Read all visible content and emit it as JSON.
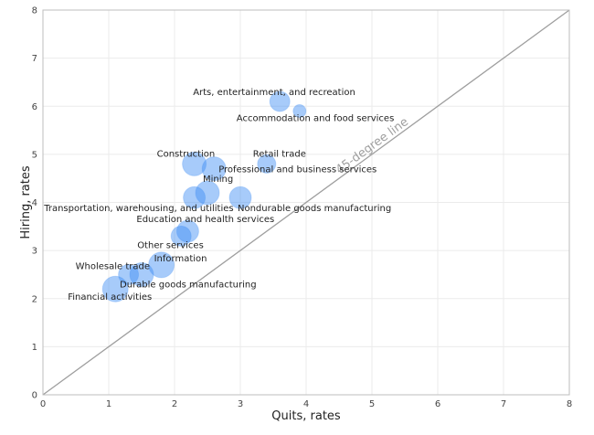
{
  "chart_data": {
    "type": "scatter",
    "title": "",
    "xlabel": "Quits, rates",
    "ylabel": "Hiring, rates",
    "xlim": [
      0,
      8
    ],
    "ylim": [
      0,
      8
    ],
    "x_ticks": [
      0,
      1,
      2,
      3,
      4,
      5,
      6,
      7,
      8
    ],
    "y_ticks": [
      0,
      1,
      2,
      3,
      4,
      5,
      6,
      7,
      8
    ],
    "grid": true,
    "bubble_color": "#3b8cf5",
    "reference_line": {
      "label": "45-degree line",
      "from": [
        0,
        0
      ],
      "to": [
        8,
        8
      ],
      "color": "#9e9e9e"
    },
    "points": [
      {
        "label": "Arts, entertainment, and recreation",
        "x": 3.6,
        "y": 6.1,
        "size": 11
      },
      {
        "label": "Accommodation and food services",
        "x": 3.9,
        "y": 5.9,
        "size": 7
      },
      {
        "label": "Construction",
        "x": 2.3,
        "y": 4.8,
        "size": 13
      },
      {
        "label": "Retail trade",
        "x": 3.4,
        "y": 4.8,
        "size": 10
      },
      {
        "label": "Professional and business services",
        "x": 2.6,
        "y": 4.7,
        "size": 13
      },
      {
        "label": "Mining",
        "x": 2.5,
        "y": 4.2,
        "size": 13
      },
      {
        "label": "Transportation, warehousing, and utilities",
        "x": 2.3,
        "y": 4.1,
        "size": 12
      },
      {
        "label": "Nondurable goods manufacturing",
        "x": 3.0,
        "y": 4.1,
        "size": 12
      },
      {
        "label": "Education and health services",
        "x": 2.2,
        "y": 3.4,
        "size": 12
      },
      {
        "label": "Other services",
        "x": 2.1,
        "y": 3.3,
        "size": 11
      },
      {
        "label": "Information",
        "x": 1.8,
        "y": 2.7,
        "size": 14
      },
      {
        "label": "Wholesale trade",
        "x": 1.3,
        "y": 2.5,
        "size": 11
      },
      {
        "label": "Durable goods manufacturing",
        "x": 1.5,
        "y": 2.5,
        "size": 13
      },
      {
        "label": "Financial activities",
        "x": 1.1,
        "y": 2.2,
        "size": 14
      }
    ]
  }
}
